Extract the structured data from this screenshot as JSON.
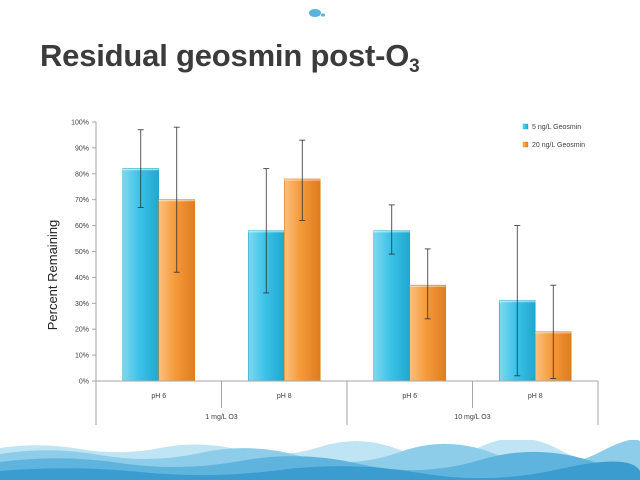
{
  "slide": {
    "title_main": "Residual geosmin post-O",
    "title_sub": "3",
    "logo_icon": "water-drop-logo-icon",
    "footer_icon": "water-wave-icon"
  },
  "chart_data": {
    "type": "bar",
    "title": "",
    "ylabel": "Percent Remaining",
    "xlabel": "",
    "ylim": [
      0,
      100
    ],
    "y_ticks": [
      "0%",
      "10%",
      "20%",
      "30%",
      "40%",
      "50%",
      "60%",
      "70%",
      "80%",
      "90%",
      "100%"
    ],
    "categories": [
      "pH 6",
      "pH 8",
      "pH 6",
      "pH 8"
    ],
    "groups": [
      {
        "label": "1 mg/L O3",
        "categories": [
          0,
          1
        ]
      },
      {
        "label": "10 mg/L O3",
        "categories": [
          2,
          3
        ]
      }
    ],
    "series": [
      {
        "name": "5 ng/L Geosmin",
        "color": "#38c2e6",
        "values": [
          82,
          58,
          58,
          31
        ],
        "error_low": [
          67,
          34,
          49,
          2
        ],
        "error_high": [
          97,
          82,
          68,
          60
        ]
      },
      {
        "name": "20 ng/L Geosmin",
        "color": "#f39a3c",
        "values": [
          70,
          78,
          37,
          19
        ],
        "error_low": [
          42,
          62,
          24,
          1
        ],
        "error_high": [
          98,
          93,
          51,
          37
        ]
      }
    ],
    "legend_position": "top-right",
    "grid": false
  }
}
